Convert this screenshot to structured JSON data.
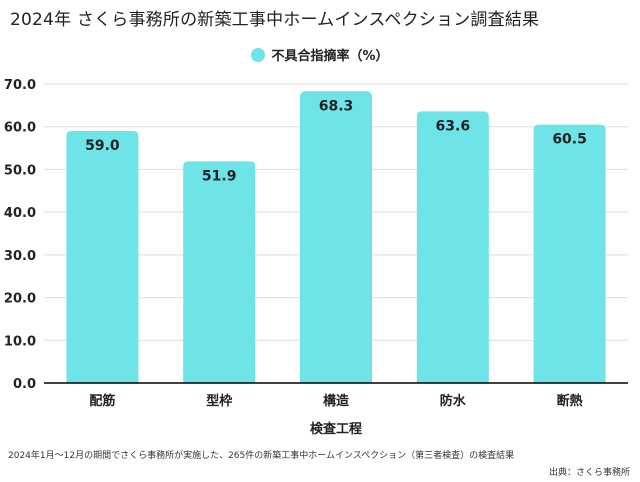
{
  "colors": {
    "bar": "#6ee3e8",
    "grid": "#dedede",
    "axis": "#000000",
    "text": "#222222"
  },
  "chart_data": {
    "type": "bar",
    "title": "2024年 さくら事務所の新築工事中ホームインスペクション調査結果",
    "categories": [
      "配筋",
      "型枠",
      "構造",
      "防水",
      "断熱"
    ],
    "series": [
      {
        "name": "不具合指摘率（%）",
        "values": [
          59.0,
          51.9,
          68.3,
          63.6,
          60.5
        ]
      }
    ],
    "data_labels": [
      "59.0",
      "51.9",
      "68.3",
      "63.6",
      "60.5"
    ],
    "xlabel": "検査工程",
    "ylabel": "",
    "ylim": [
      0,
      70
    ],
    "yticks": [
      "0.0",
      "10.0",
      "20.0",
      "30.0",
      "40.0",
      "50.0",
      "60.0",
      "70.0"
    ],
    "grid": true,
    "legend_position": "top-center"
  },
  "footnote": "2024年1月〜12月の期間でさくら事務所が実施した、265件の新築工事中ホームインスペクション（第三者検査）の検査結果",
  "source": "出典：さくら事務所"
}
